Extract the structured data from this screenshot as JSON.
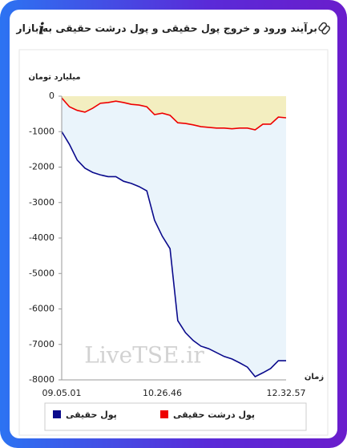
{
  "header": {
    "title": "برآیند ورود و خروج پول حقیقی و پول درشت حقیقی به بازار",
    "icon": "i"
  },
  "chart_data": {
    "type": "line",
    "y_label": "میلیارد تومان",
    "x_label": "زمان",
    "watermark": "LiveTSE.ir",
    "categories": [
      "09.05.01",
      null,
      null,
      null,
      null,
      null,
      null,
      null,
      null,
      null,
      null,
      null,
      null,
      "10.26.46",
      null,
      null,
      null,
      null,
      null,
      null,
      null,
      null,
      null,
      null,
      null,
      null,
      null,
      null,
      null,
      "12.32.57"
    ],
    "series": [
      {
        "name": "پول حقیقی",
        "color": "#0a0a8c",
        "values": [
          -1000,
          -1360,
          -1800,
          -2030,
          -2150,
          -2220,
          -2270,
          -2270,
          -2400,
          -2460,
          -2550,
          -2670,
          -3500,
          -3950,
          -4300,
          -6330,
          -6670,
          -6890,
          -7050,
          -7120,
          -7230,
          -7340,
          -7410,
          -7520,
          -7640,
          -7910,
          -7800,
          -7680,
          -7460,
          -7460
        ]
      },
      {
        "name": "پول درشت حقیقی",
        "color": "#ee0000",
        "values": [
          -50,
          -300,
          -400,
          -450,
          -340,
          -200,
          -180,
          -140,
          -180,
          -230,
          -250,
          -300,
          -520,
          -480,
          -540,
          -750,
          -770,
          -810,
          -860,
          -880,
          -900,
          -900,
          -920,
          -900,
          -900,
          -950,
          -790,
          -790,
          -590,
          -610
        ]
      }
    ],
    "ylim": [
      -8000,
      0
    ],
    "yticks": [
      0,
      -1000,
      -2000,
      -3000,
      -4000,
      -5000,
      -6000,
      -7000,
      -8000
    ],
    "grid": false
  }
}
